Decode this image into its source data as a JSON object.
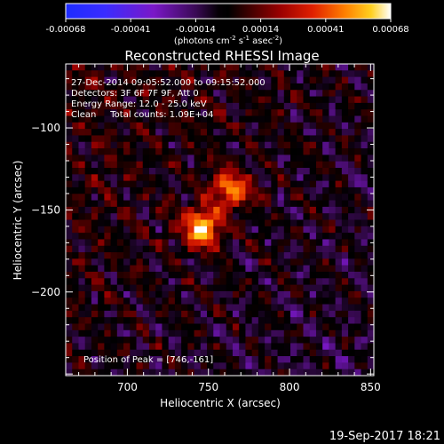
{
  "chart_data": {
    "type": "heatmap",
    "title": "Reconstructed RHESSI Image",
    "xlabel": "Heliocentric X (arcsec)",
    "ylabel": "Heliocentric Y (arcsec)",
    "xlim": [
      662,
      852
    ],
    "ylim": [
      -251,
      -61
    ],
    "x_ticks": [
      700,
      750,
      800,
      850
    ],
    "y_ticks": [
      -100,
      -150,
      -200
    ],
    "colorbar": {
      "ticks": [
        "-0.00068",
        "-0.00041",
        "-0.00014",
        "0.00014",
        "0.00041",
        "0.00068"
      ],
      "range": [
        -0.00068,
        0.00068
      ],
      "unit_label": "(photons cm",
      "unit_sup1": "-2",
      "unit_mid": " s",
      "unit_sup2": "-1",
      "unit_mid2": " asec",
      "unit_sup3": "-2",
      "unit_end": ")"
    },
    "annotations": [
      "27-Dec-2014 09:05:52.000 to 09:15:52.000",
      "Detectors: 3F 6F 7F 9F, Att 0",
      "Energy Range: 12.0 - 25.0 keV",
      "Clean     Total counts: 1.09E+04"
    ],
    "peak_text": "Position of Peak = [746,-161]",
    "peak": {
      "x": 746,
      "y": -161
    },
    "sources": [
      {
        "x": 746,
        "y": -161,
        "peak": 0.00068
      },
      {
        "x": 764,
        "y": -138,
        "peak": 0.00052
      }
    ],
    "grid": false
  },
  "footer": {
    "timestamp": "19-Sep-2017 18:21"
  }
}
